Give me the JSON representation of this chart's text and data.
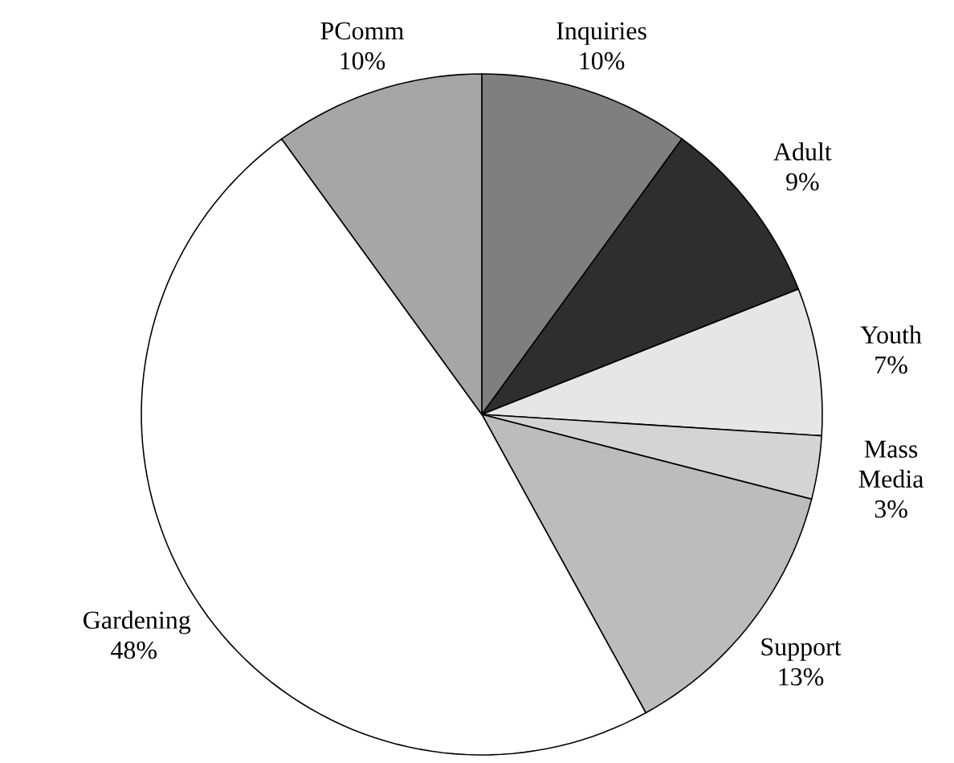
{
  "chart_data": {
    "type": "pie",
    "categories": [
      "Inquiries",
      "Adult",
      "Youth",
      "Mass Media",
      "Support",
      "Gardening",
      "PComm"
    ],
    "values": [
      10,
      9,
      7,
      3,
      13,
      48,
      10
    ],
    "value_labels": [
      "10%",
      "9%",
      "7%",
      "3%",
      "13%",
      "48%",
      "10%"
    ],
    "colors": [
      "#7f7f7f",
      "#2e2e2e",
      "#e6e6e6",
      "#d4d4d4",
      "#bcbcbc",
      "#ffffff",
      "#a6a6a6"
    ]
  }
}
